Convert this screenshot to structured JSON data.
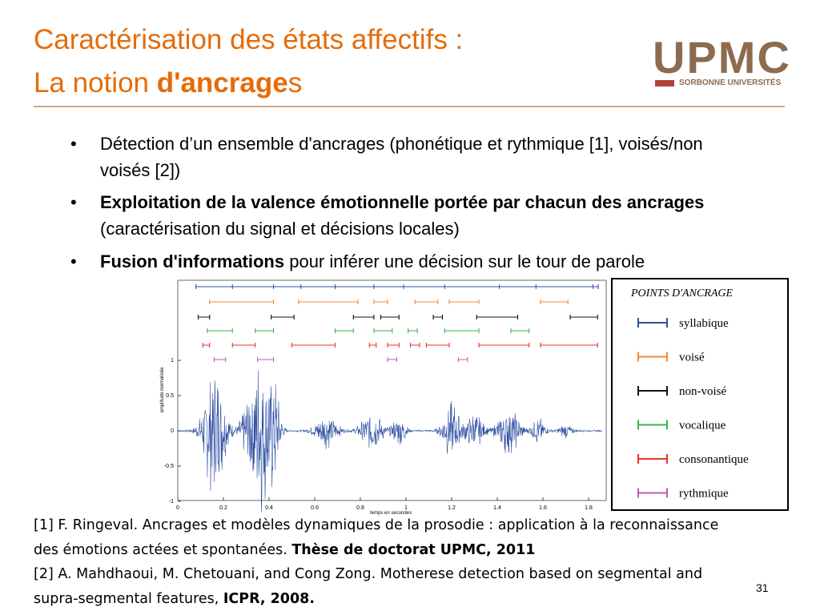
{
  "header": {
    "title_line1": "Caractérisation des états affectifs :",
    "title_line2_prefix": "La notion ",
    "title_line2_bold": "d'ancrage",
    "title_line2_suffix": "s",
    "logo": "UPMC",
    "logo_sub": "SORBONNE UNIVERSITÉS"
  },
  "bullets": [
    {
      "bold": "",
      "text": "Détection d’un ensemble d'ancrages (phonétique et rythmique [1], voisés/non voisés [2])"
    },
    {
      "bold": "Exploitation de la valence émotionnelle portée par chacun des ancrages",
      "text": " (caractérisation du signal et  décisions locales)"
    },
    {
      "bold": "Fusion d'informations",
      "text": " pour inférer une décision sur le tour de parole"
    }
  ],
  "figure": {
    "xlabel": "temps en secondes",
    "ylabel": "amplitude normalisée",
    "xticks": [
      0,
      0.2,
      0.4,
      0.6,
      0.8,
      1,
      1.2,
      1.4,
      1.6,
      1.8
    ],
    "yticks": [
      1,
      0.5,
      0,
      -0.5,
      -1
    ],
    "legend_title": "POINTS D'ANCRAGE",
    "legend": [
      {
        "name": "syllabique",
        "color": "#2e4fa3"
      },
      {
        "name": "voisé",
        "color": "#f08a3c"
      },
      {
        "name": "non-voisé",
        "color": "#111111"
      },
      {
        "name": "vocalique",
        "color": "#3bb54a"
      },
      {
        "name": "consonantique",
        "color": "#e8332a"
      },
      {
        "name": "rythmique",
        "color": "#c45ab3"
      }
    ]
  },
  "references": [
    {
      "text": "[1] F. Ringeval. Ancrages et modèles dynamiques de la prosodie : application à la reconnaissance des émotions actées et spontanées. ",
      "bold": "Thèse de doctorat UPMC, 2011"
    },
    {
      "text": "[2] A. Mahdhaoui, M. Chetouani, and Cong Zong. Motherese detection based on segmental and supra-segmental features, ",
      "bold": "ICPR, 2008."
    }
  ],
  "page_number": "31"
}
